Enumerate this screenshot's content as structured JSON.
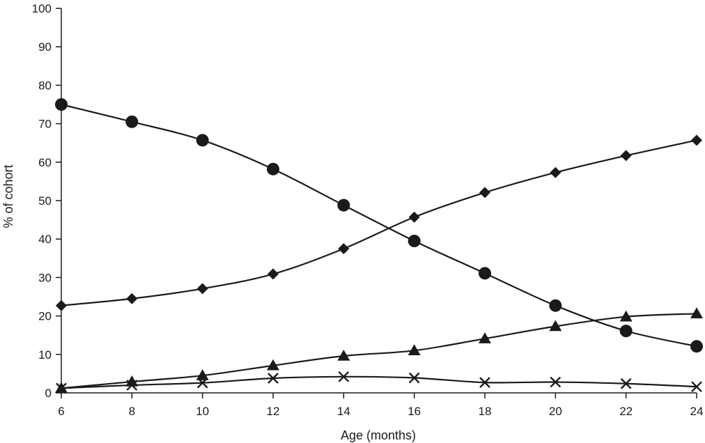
{
  "chart_data": {
    "type": "line",
    "title": "",
    "xlabel": "Age (months)",
    "ylabel": "% of cohort",
    "x": [
      6,
      8,
      10,
      12,
      14,
      16,
      18,
      20,
      22,
      24
    ],
    "xlim": [
      6,
      24
    ],
    "ylim": [
      0,
      100
    ],
    "x_ticks": [
      "6",
      "8",
      "10",
      "12",
      "14",
      "16",
      "18",
      "20",
      "22",
      "24"
    ],
    "y_ticks": [
      "0",
      "10",
      "20",
      "30",
      "40",
      "50",
      "60",
      "70",
      "80",
      "90",
      "100"
    ],
    "grid": false,
    "legend": "none",
    "series": [
      {
        "marker": "circle",
        "color": "#1a1a1a",
        "values": [
          75,
          70.5,
          65.7,
          58.2,
          48.8,
          39.5,
          31.1,
          22.7,
          16.1,
          12.1
        ]
      },
      {
        "marker": "diamond",
        "color": "#1a1a1a",
        "values": [
          22.7,
          24.5,
          27.1,
          30.9,
          37.5,
          45.7,
          52.1,
          57.3,
          61.7,
          65.7
        ]
      },
      {
        "marker": "triangle",
        "color": "#1a1a1a",
        "values": [
          1.2,
          2.9,
          4.5,
          7.1,
          9.6,
          11.0,
          14.1,
          17.3,
          19.8,
          20.6
        ]
      },
      {
        "marker": "x",
        "color": "#1a1a1a",
        "values": [
          1.2,
          2.0,
          2.6,
          3.8,
          4.2,
          3.9,
          2.7,
          2.8,
          2.4,
          1.6
        ]
      }
    ]
  }
}
